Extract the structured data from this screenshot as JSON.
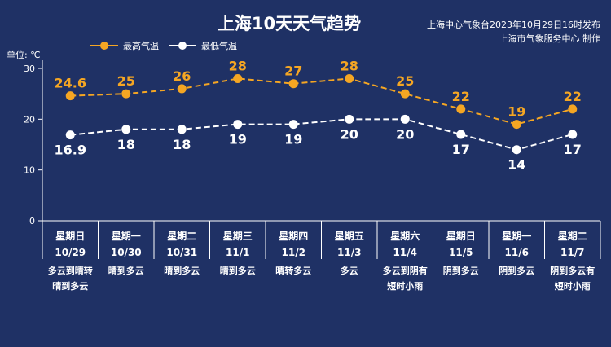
{
  "chart_data": {
    "type": "line",
    "title": "上海10天天气趋势",
    "source_line1": "上海中心气象台2023年10月29日16时发布",
    "source_line2": "上海市气象服务中心 制作",
    "unit_label": "单位: ℃",
    "ylim": [
      0,
      30
    ],
    "yticks": [
      "0",
      "10",
      "20",
      "30"
    ],
    "grid": false,
    "legend_position": "top-left",
    "weekdays": [
      "星期日",
      "星期一",
      "星期二",
      "星期三",
      "星期四",
      "星期五",
      "星期六",
      "星期日",
      "星期一",
      "星期二"
    ],
    "dates": [
      "10/29",
      "10/30",
      "10/31",
      "11/1",
      "11/2",
      "11/3",
      "11/4",
      "11/5",
      "11/6",
      "11/7"
    ],
    "conditions": [
      [
        "多云到晴转",
        "晴到多云"
      ],
      [
        "晴到多云"
      ],
      [
        "晴到多云"
      ],
      [
        "晴到多云"
      ],
      [
        "晴转多云"
      ],
      [
        "多云"
      ],
      [
        "多云到阴有",
        "短时小雨"
      ],
      [
        "阴到多云"
      ],
      [
        "阴到多云"
      ],
      [
        "阴到多云有",
        "短时小雨"
      ]
    ],
    "series": [
      {
        "name": "最高气温",
        "color": "#f5a623",
        "values": [
          24.6,
          25,
          26,
          28,
          27,
          28,
          25,
          22,
          19,
          22
        ],
        "labels": [
          "24.6",
          "25",
          "26",
          "28",
          "27",
          "28",
          "25",
          "22",
          "19",
          "22"
        ]
      },
      {
        "name": "最低气温",
        "color": "#ffffff",
        "values": [
          16.9,
          18,
          18,
          19,
          19,
          20,
          20,
          17,
          14,
          17
        ],
        "labels": [
          "16.9",
          "18",
          "18",
          "19",
          "19",
          "20",
          "20",
          "17",
          "14",
          "17"
        ]
      }
    ]
  }
}
